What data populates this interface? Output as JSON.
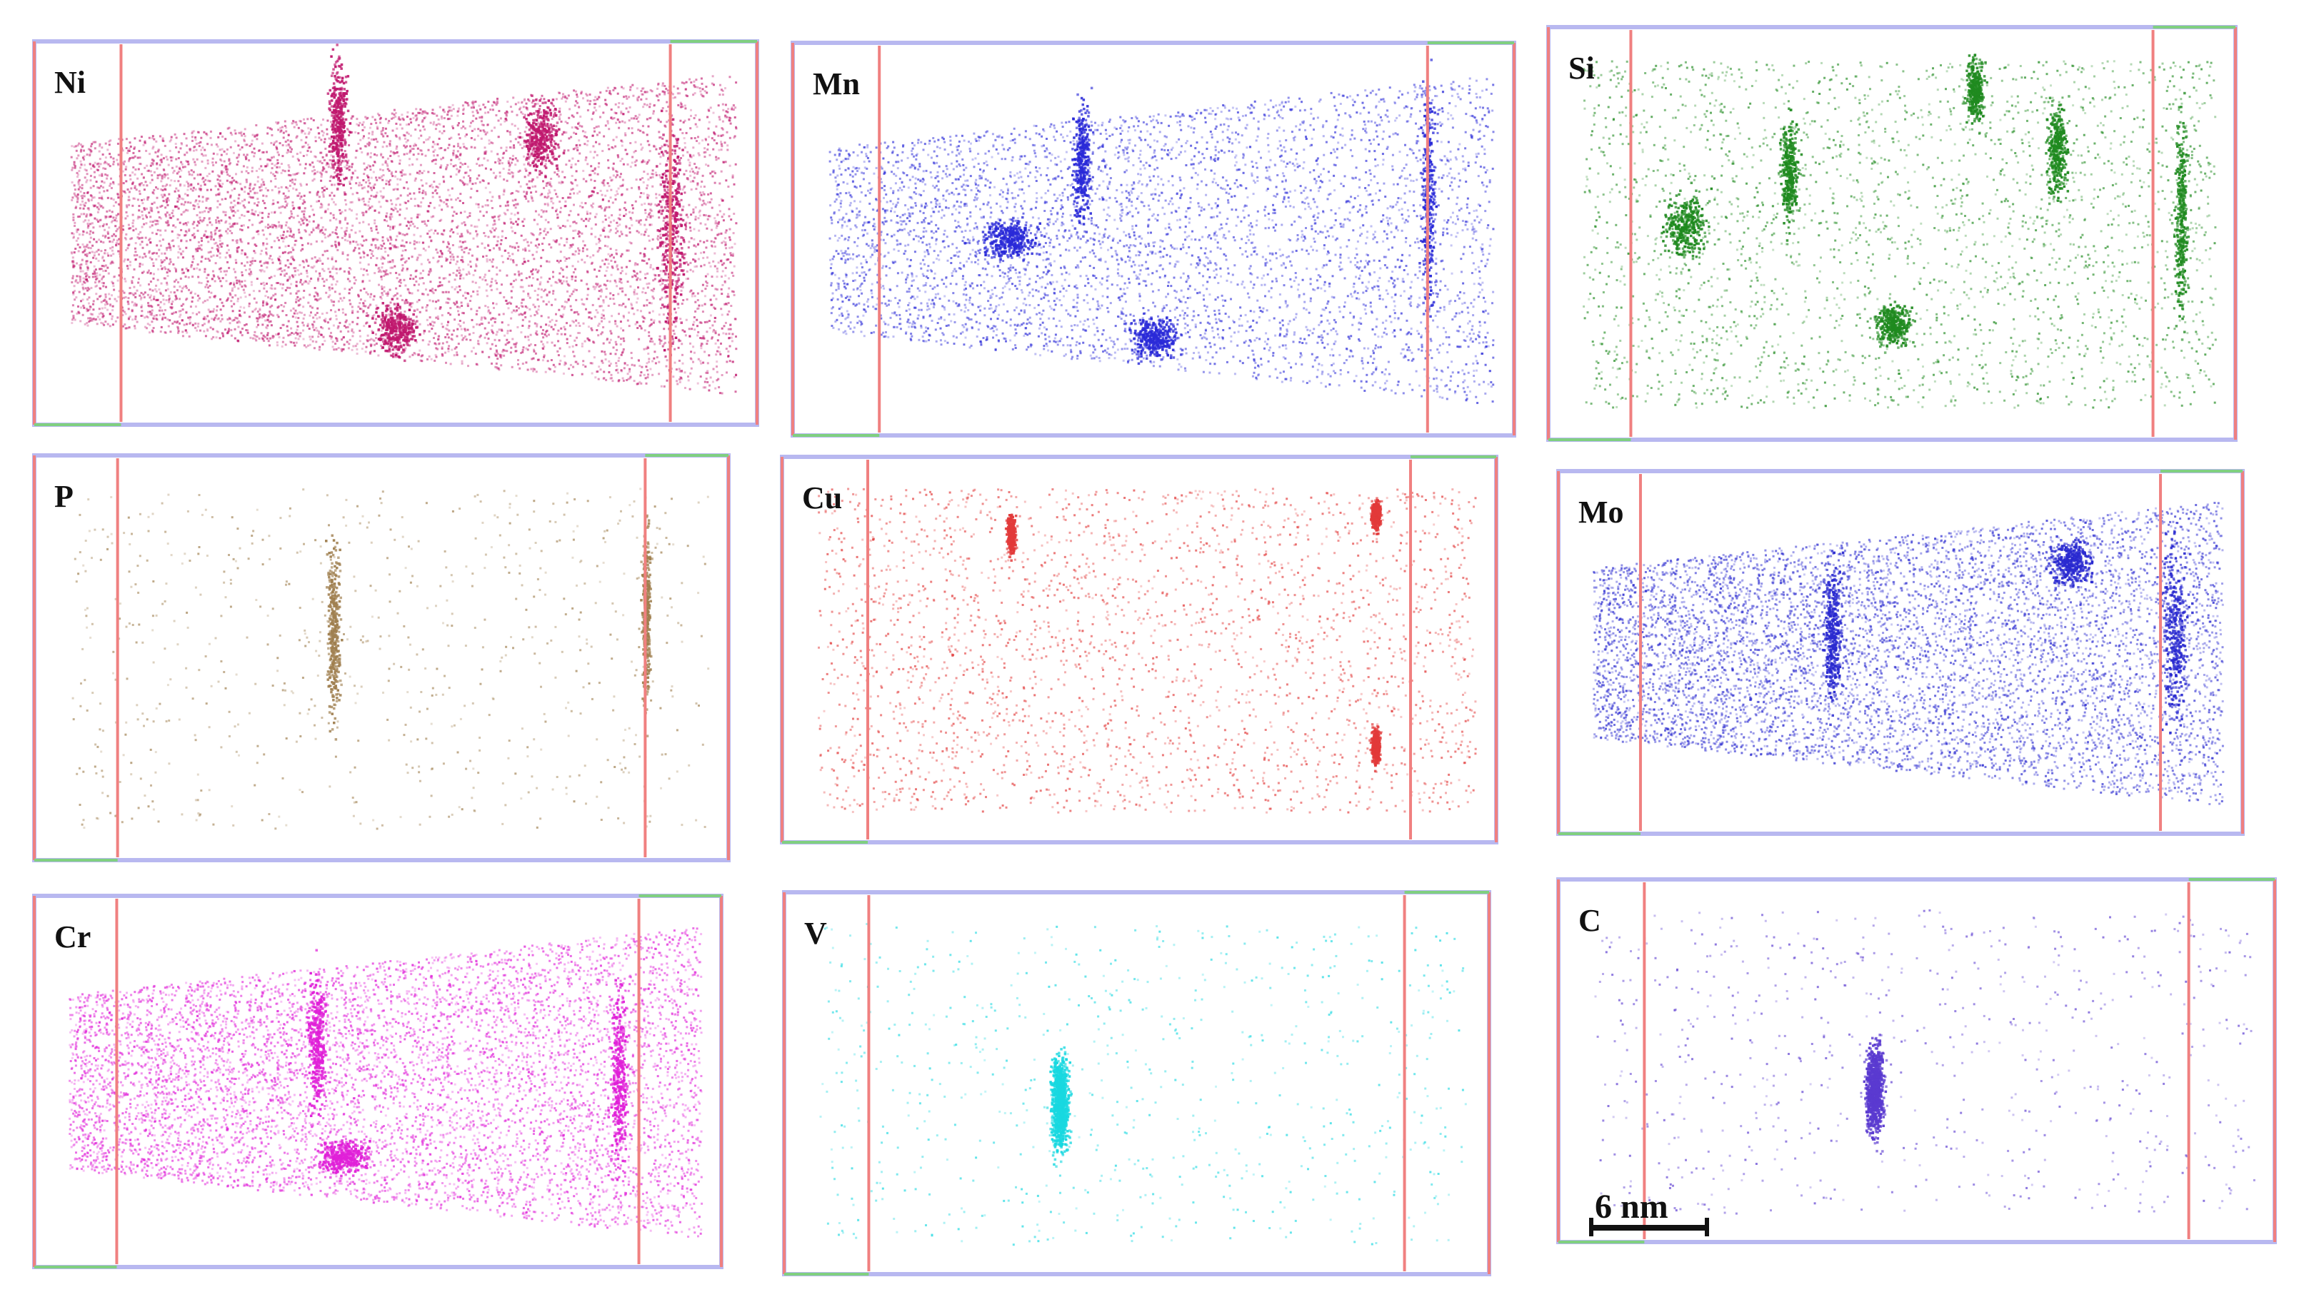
{
  "figure": {
    "panels": [
      {
        "label": "Ni",
        "color": "#c0186e",
        "density": "high",
        "clusters": "grain boundaries and rod-like clusters"
      },
      {
        "label": "Mn",
        "color": "#2a2ad8",
        "density": "medium",
        "clusters": "line features and small clusters"
      },
      {
        "label": "Si",
        "color": "#1f8a1f",
        "density": "low",
        "clusters": "rod-like clusters"
      },
      {
        "label": "P",
        "color": "#a08050",
        "density": "very low",
        "clusters": "boundary segregation"
      },
      {
        "label": "Cu",
        "color": "#e23a3a",
        "density": "low",
        "clusters": "small clusters at boundary"
      },
      {
        "label": "Mo",
        "color": "#2a2ad0",
        "density": "high",
        "clusters": "grain boundaries and clusters"
      },
      {
        "label": "Cr",
        "color": "#e020d8",
        "density": "high",
        "clusters": "boundaries and clusters"
      },
      {
        "label": "V",
        "color": "#18d8e0",
        "density": "very low",
        "clusters": "single plate-like precipitate"
      },
      {
        "label": "C",
        "color": "#5a3ad0",
        "density": "very low",
        "clusters": "single plate-like precipitate"
      }
    ],
    "scale_bar": {
      "label": "6 nm"
    },
    "colors": {
      "box_edge_front": "#b8b8f0",
      "box_edge_side": "#f08080",
      "box_corner": "#80d080",
      "background": "#ffffff"
    }
  }
}
